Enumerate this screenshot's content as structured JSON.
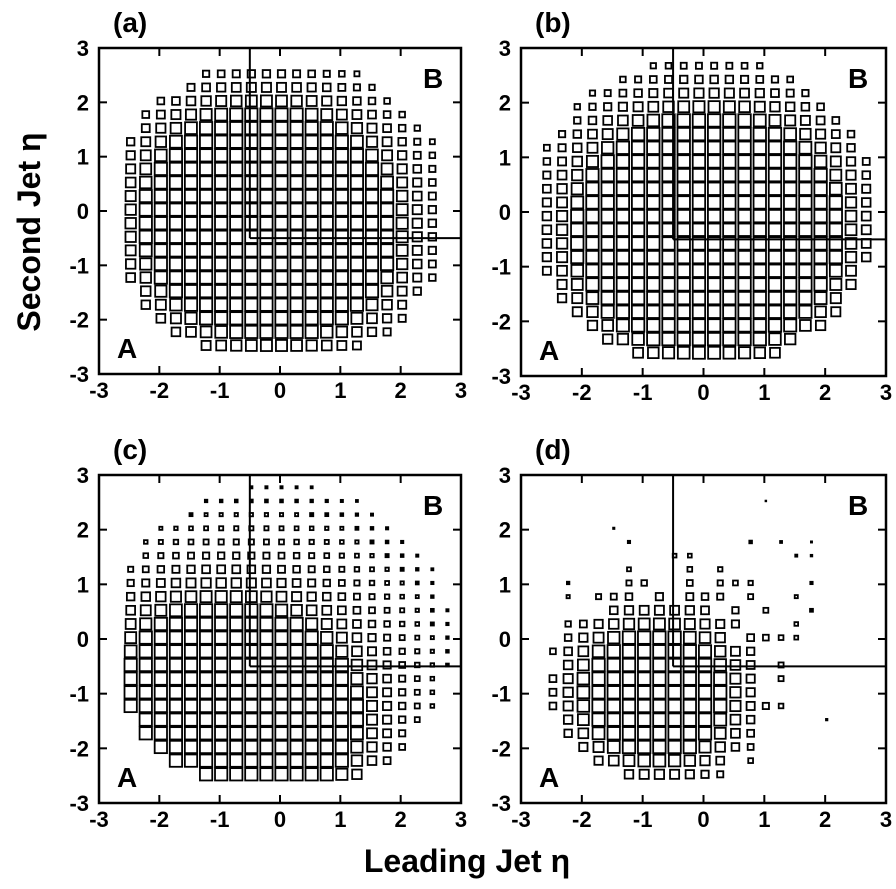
{
  "figure": {
    "xlabel": "Leading Jet η",
    "ylabel": "Second Jet η"
  },
  "chart_data": [
    {
      "type": "scatter",
      "panel": "(a)",
      "marker": "box-histogram (square size ∝ bin count)",
      "xlabel": "Leading Jet η",
      "ylabel": "Second Jet η",
      "xlim": [
        -3,
        3
      ],
      "ylim": [
        -3,
        3
      ],
      "x_ticks": [
        "-3",
        "-2",
        "-1",
        "0",
        "1",
        "2",
        "3"
      ],
      "y_ticks": [
        "-3",
        "-2",
        "-1",
        "0",
        "1",
        "2",
        "3"
      ],
      "bin_width": 0.25,
      "eta_range": [
        -2.6,
        2.6
      ],
      "hot_spots": [
        [
          -0.4,
          0.2,
          1.0
        ],
        [
          0.2,
          -0.55,
          0.9
        ],
        [
          -0.4,
          -0.5,
          0.8
        ]
      ],
      "spread": 1.25,
      "region_labels": [
        "A",
        "B"
      ],
      "cut_lines": {
        "vertical_x": -0.5,
        "horizontal_y": -0.5
      }
    },
    {
      "type": "scatter",
      "panel": "(b)",
      "marker": "box-histogram (square size ∝ bin count)",
      "xlabel": "Leading Jet η",
      "ylabel": "Second Jet η",
      "xlim": [
        -3,
        3
      ],
      "ylim": [
        -3,
        3
      ],
      "x_ticks": [
        "-3",
        "-2",
        "-1",
        "0",
        "1",
        "2",
        "3"
      ],
      "y_ticks": [
        "-3",
        "-2",
        "-1",
        "0",
        "1",
        "2",
        "3"
      ],
      "bin_width": 0.25,
      "eta_range": [
        -2.7,
        2.7
      ],
      "hot_spots": [
        [
          0.1,
          -0.35,
          1.0
        ],
        [
          0.3,
          -0.3,
          0.9
        ],
        [
          -0.2,
          -0.6,
          0.8
        ]
      ],
      "spread": 1.3,
      "region_labels": [
        "A",
        "B"
      ],
      "cut_lines": {
        "vertical_x": -0.5,
        "horizontal_y": -0.5
      }
    },
    {
      "type": "scatter",
      "panel": "(c)",
      "marker": "box-histogram (square size ∝ bin count)",
      "xlabel": "Leading Jet η",
      "ylabel": "Second Jet η",
      "xlim": [
        -3,
        3
      ],
      "ylim": [
        -3,
        3
      ],
      "x_ticks": [
        "-3",
        "-2",
        "-1",
        "0",
        "1",
        "2",
        "3"
      ],
      "y_ticks": [
        "-3",
        "-2",
        "-1",
        "0",
        "1",
        "2",
        "3"
      ],
      "bin_width": 0.25,
      "eta_range": [
        -2.6,
        2.8
      ],
      "hot_spots": [
        [
          -0.1,
          -1.5,
          1.0
        ],
        [
          -1.5,
          -0.6,
          0.85
        ],
        [
          -0.6,
          -1.6,
          0.9
        ]
      ],
      "spread": 1.1,
      "region_labels": [
        "A",
        "B"
      ],
      "cut_lines": {
        "vertical_x": -0.5,
        "horizontal_y": -0.5
      }
    },
    {
      "type": "scatter",
      "panel": "(d)",
      "marker": "box-histogram (square size ∝ bin count)",
      "xlabel": "Leading Jet η",
      "ylabel": "Second Jet η",
      "xlim": [
        -3,
        3
      ],
      "ylim": [
        -3,
        3
      ],
      "x_ticks": [
        "-3",
        "-2",
        "-1",
        "0",
        "1",
        "2",
        "3"
      ],
      "y_ticks": [
        "-3",
        "-2",
        "-1",
        "0",
        "1",
        "2",
        "3"
      ],
      "bin_width": 0.25,
      "eta_range": [
        -2.6,
        2.6
      ],
      "hot_spots": [
        [
          -0.7,
          -1.3,
          1.0
        ],
        [
          -1.1,
          -0.8,
          0.7
        ]
      ],
      "spread": 0.85,
      "sparse": true,
      "region_labels": [
        "A",
        "B"
      ],
      "cut_lines": {
        "vertical_x": -0.5,
        "horizontal_y": -0.5
      }
    }
  ]
}
